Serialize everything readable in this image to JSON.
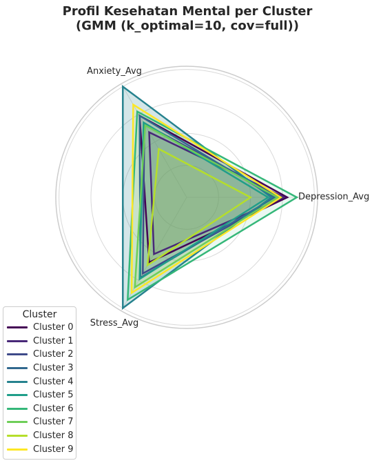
{
  "chart_data": {
    "type": "radar",
    "title": [
      "Profil Kesehatan Mental per Cluster",
      "(GMM (k_optimal=10, cov=full))"
    ],
    "axes": [
      "Depression_Avg",
      "Anxiety_Avg",
      "Stress_Avg"
    ],
    "rlim": [
      0,
      4.1
    ],
    "grid_rings": [
      1,
      2,
      3,
      4
    ],
    "legend_title": "Cluster",
    "legend_position": "lower-left",
    "series": [
      {
        "name": "Cluster 0",
        "color": "#440154",
        "values": [
          3.15,
          2.95,
          2.35
        ]
      },
      {
        "name": "Cluster 1",
        "color": "#482878",
        "values": [
          3.05,
          2.35,
          2.05
        ]
      },
      {
        "name": "Cluster 2",
        "color": "#3e4a89",
        "values": [
          2.95,
          2.65,
          2.75
        ]
      },
      {
        "name": "Cluster 3",
        "color": "#31688e",
        "values": [
          2.75,
          2.95,
          2.9
        ]
      },
      {
        "name": "Cluster 4",
        "color": "#26828e",
        "values": [
          2.65,
          4.0,
          4.0
        ],
        "filled": true
      },
      {
        "name": "Cluster 5",
        "color": "#1f9e89",
        "values": [
          2.55,
          2.7,
          2.95
        ]
      },
      {
        "name": "Cluster 6",
        "color": "#35b779",
        "values": [
          3.45,
          3.1,
          3.7
        ]
      },
      {
        "name": "Cluster 7",
        "color": "#6ece58",
        "values": [
          2.85,
          2.6,
          3.25
        ]
      },
      {
        "name": "Cluster 8",
        "color": "#b5de2b",
        "values": [
          2.0,
          1.75,
          2.45
        ]
      },
      {
        "name": "Cluster 9",
        "color": "#fde725",
        "values": [
          2.95,
          3.35,
          3.45
        ]
      }
    ]
  }
}
